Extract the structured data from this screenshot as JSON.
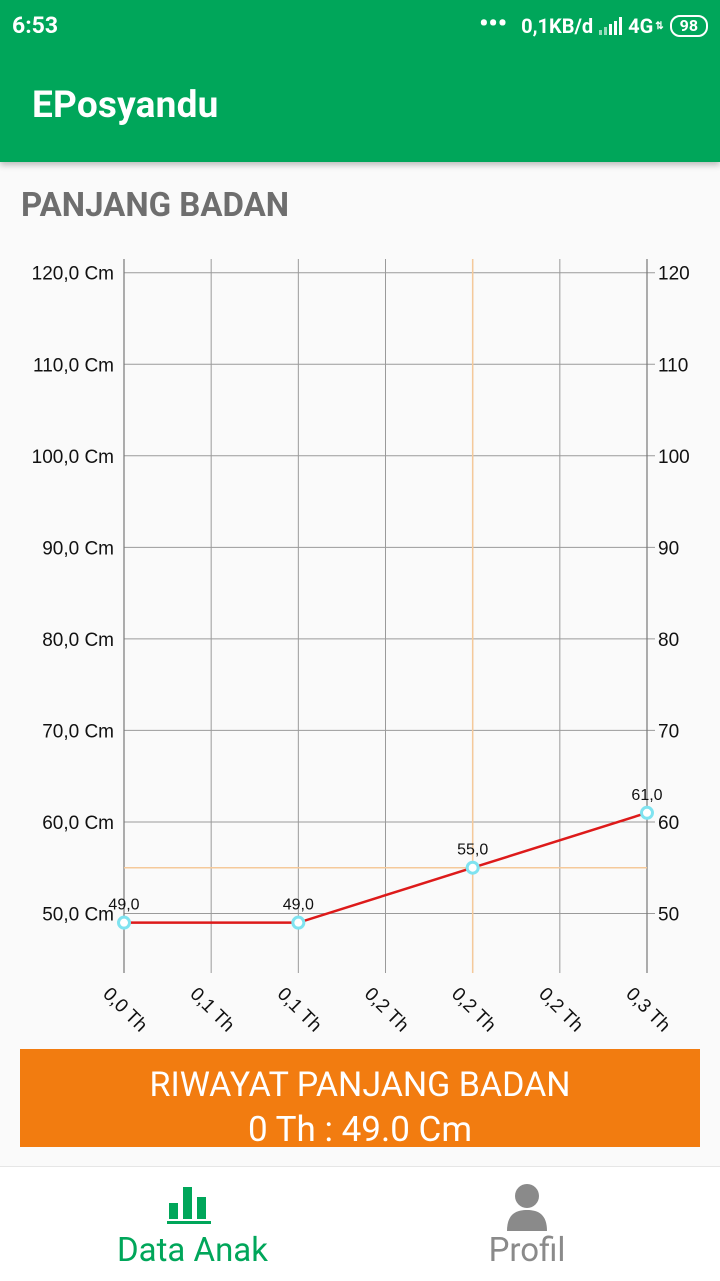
{
  "status_bar": {
    "time": "6:53",
    "dots": "•••",
    "network_speed": "0,1KB/d",
    "network_type": "4G",
    "battery": "98"
  },
  "app_bar": {
    "title": "EPosyandu"
  },
  "page": {
    "title": "PANJANG BADAN"
  },
  "chart_data": {
    "type": "line",
    "title": "PANJANG BADAN",
    "y_ticks_left": [
      "50,0 Cm",
      "60,0 Cm",
      "70,0 Cm",
      "80,0 Cm",
      "90,0 Cm",
      "100,0 Cm",
      "110,0 Cm",
      "120,0 Cm"
    ],
    "y_ticks_right": [
      "50",
      "60",
      "70",
      "80",
      "90",
      "100",
      "110",
      "120"
    ],
    "y_tick_values": [
      50,
      60,
      70,
      80,
      90,
      100,
      110,
      120
    ],
    "x_tick_labels": [
      "0,0 Th",
      "0,1 Th",
      "0,1 Th",
      "0,2 Th",
      "0,2 Th",
      "0,2 Th",
      "0,3 Th"
    ],
    "x_range": [
      0,
      6
    ],
    "y_range": [
      43.5,
      121.5
    ],
    "grid": true,
    "series": [
      {
        "color": "#dd1a1a",
        "x": [
          0,
          2,
          4,
          6
        ],
        "y": [
          49.0,
          49.0,
          55.0,
          61.0
        ],
        "labels": [
          "49,0",
          "49,0",
          "55,0",
          "61,0"
        ]
      }
    ],
    "highlight": {
      "x": 4,
      "y": 55.0,
      "color": "#f5c99a"
    },
    "marker_color": "#7fe3f0"
  },
  "history": {
    "title": "RIWAYAT PANJANG BADAN",
    "value": "0 Th : 49.0 Cm",
    "color": "#f27c10"
  },
  "bottom_nav": {
    "items": [
      {
        "label": "Data Anak",
        "icon": "bar-chart-icon",
        "active": true
      },
      {
        "label": "Profil",
        "icon": "person-icon",
        "active": false
      }
    ],
    "active_color": "#00a65a",
    "inactive_color": "#8a8a8a"
  }
}
